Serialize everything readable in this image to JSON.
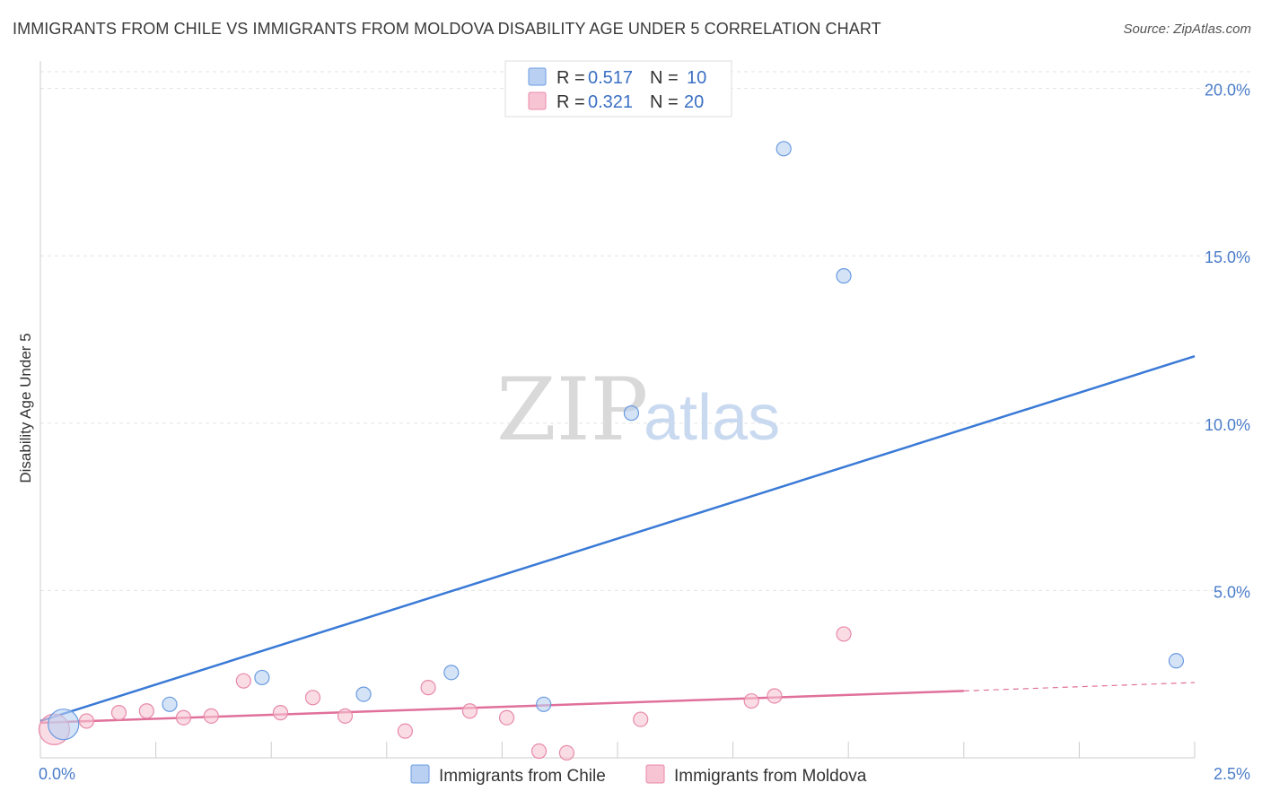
{
  "title": "IMMIGRANTS FROM CHILE VS IMMIGRANTS FROM MOLDOVA DISABILITY AGE UNDER 5 CORRELATION CHART",
  "source": "Source: ZipAtlas.com",
  "watermark": {
    "zip": "ZIP",
    "atlas": "atlas"
  },
  "chart_data": {
    "type": "scatter",
    "ylabel": "Disability Age Under 5",
    "xlim": [
      0,
      2.5
    ],
    "ylim": [
      0,
      20.5
    ],
    "x_tick_labels": [
      {
        "value": 0,
        "label": "0.0%"
      },
      {
        "value": 2.5,
        "label": "2.5%"
      }
    ],
    "y_tick_labels": [
      {
        "value": 5,
        "label": "5.0%"
      },
      {
        "value": 10,
        "label": "10.0%"
      },
      {
        "value": 15,
        "label": "15.0%"
      },
      {
        "value": 20,
        "label": "20.0%"
      }
    ],
    "grid": true,
    "legend_position": "top-center",
    "series": [
      {
        "name": "Immigrants from Chile",
        "color": "#6a9be0",
        "fill": "#b9d0f2",
        "R": "0.517",
        "N": "10",
        "points": [
          {
            "x": 0.05,
            "y": 1.0,
            "size": "large"
          },
          {
            "x": 0.28,
            "y": 1.6
          },
          {
            "x": 0.48,
            "y": 2.4
          },
          {
            "x": 0.7,
            "y": 1.9
          },
          {
            "x": 0.89,
            "y": 2.55
          },
          {
            "x": 1.09,
            "y": 1.6
          },
          {
            "x": 1.28,
            "y": 10.3
          },
          {
            "x": 1.61,
            "y": 18.2
          },
          {
            "x": 1.74,
            "y": 14.4
          },
          {
            "x": 2.46,
            "y": 2.9
          }
        ],
        "trend": {
          "x0": 0.0,
          "y0": 1.1,
          "x1": 2.5,
          "y1": 12.0
        }
      },
      {
        "name": "Immigrants from Moldova",
        "color": "#e889a9",
        "fill": "#f7c4d4",
        "R": "0.321",
        "N": "20",
        "points": [
          {
            "x": 0.03,
            "y": 0.85,
            "size": "large"
          },
          {
            "x": 0.1,
            "y": 1.1
          },
          {
            "x": 0.17,
            "y": 1.35
          },
          {
            "x": 0.23,
            "y": 1.4
          },
          {
            "x": 0.31,
            "y": 1.2
          },
          {
            "x": 0.37,
            "y": 1.25
          },
          {
            "x": 0.44,
            "y": 2.3
          },
          {
            "x": 0.52,
            "y": 1.35
          },
          {
            "x": 0.59,
            "y": 1.8
          },
          {
            "x": 0.66,
            "y": 1.25
          },
          {
            "x": 0.79,
            "y": 0.8
          },
          {
            "x": 0.84,
            "y": 2.1
          },
          {
            "x": 0.93,
            "y": 1.4
          },
          {
            "x": 1.01,
            "y": 1.2
          },
          {
            "x": 1.08,
            "y": 0.2
          },
          {
            "x": 1.14,
            "y": 0.15
          },
          {
            "x": 1.3,
            "y": 1.15
          },
          {
            "x": 1.54,
            "y": 1.7
          },
          {
            "x": 1.59,
            "y": 1.85
          },
          {
            "x": 1.74,
            "y": 3.7
          }
        ],
        "trend": {
          "x0": 0.0,
          "y0": 1.05,
          "x1": 2.0,
          "y1": 2.0
        },
        "trend_dashed": {
          "x0": 2.0,
          "y0": 2.0,
          "x1": 2.5,
          "y1": 2.25
        }
      }
    ]
  },
  "legend_labels": {
    "r_prefix": "R = ",
    "n_prefix": "N = "
  }
}
